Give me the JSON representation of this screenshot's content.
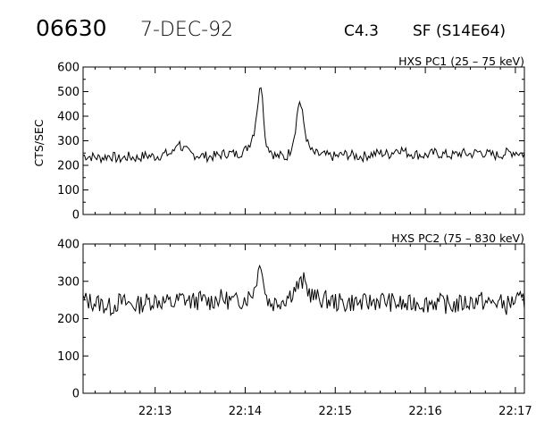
{
  "header": {
    "event_id": "06630",
    "date": "7-DEC-92",
    "flare_class": "C4.3",
    "flare_location": "SF (S14E64)"
  },
  "colors": {
    "trace": "#000000",
    "background": "#ffffff"
  },
  "chart_data": [
    {
      "type": "line",
      "title": "HXS PC1 (25 – 75 keV)",
      "ylabel": "CTS/SEC",
      "xlabel": "",
      "ylim": [
        0,
        600
      ],
      "yticks": [
        "0",
        "100",
        "200",
        "300",
        "400",
        "500",
        "600"
      ],
      "xlim_minutes": [
        12.2,
        17.1
      ],
      "x_tick_labels": [],
      "series": [
        {
          "x": [
            12.2,
            12.3,
            12.4,
            12.5,
            12.6,
            12.7,
            12.8,
            12.9,
            13.0,
            13.1,
            13.2,
            13.25,
            13.3,
            13.4,
            13.5,
            13.6,
            13.7,
            13.8,
            13.9,
            14.0,
            14.05,
            14.1,
            14.15,
            14.18,
            14.2,
            14.22,
            14.25,
            14.3,
            14.35,
            14.4,
            14.45,
            14.5,
            14.55,
            14.6,
            14.63,
            14.66,
            14.7,
            14.75,
            14.8,
            14.9,
            15.0,
            15.1,
            15.2,
            15.3,
            15.4,
            15.5,
            15.6,
            15.7,
            15.8,
            15.9,
            16.0,
            16.1,
            16.2,
            16.3,
            16.4,
            16.5,
            16.6,
            16.7,
            16.8,
            16.9,
            17.0,
            17.1
          ],
          "y": [
            240,
            235,
            230,
            240,
            225,
            235,
            230,
            240,
            235,
            245,
            250,
            300,
            270,
            245,
            240,
            235,
            240,
            250,
            245,
            260,
            290,
            340,
            480,
            540,
            450,
            310,
            280,
            250,
            235,
            240,
            230,
            260,
            330,
            470,
            420,
            350,
            280,
            250,
            245,
            240,
            235,
            245,
            240,
            235,
            245,
            250,
            245,
            270,
            250,
            245,
            240,
            250,
            245,
            240,
            250,
            245,
            255,
            245,
            240,
            250,
            255,
            245
          ]
        }
      ]
    },
    {
      "type": "line",
      "title": "HXS PC2 (75 – 830 keV)",
      "ylabel": "",
      "xlabel": "",
      "ylim": [
        0,
        400
      ],
      "yticks": [
        "0",
        "100",
        "200",
        "300",
        "400"
      ],
      "xlim_minutes": [
        12.2,
        17.1
      ],
      "x_tick_labels": [
        "22:13",
        "22:14",
        "22:15",
        "22:16",
        "22:17"
      ],
      "x_tick_minutes": [
        13,
        14,
        15,
        16,
        17
      ],
      "series": [
        {
          "x": [
            12.2,
            12.3,
            12.4,
            12.5,
            12.6,
            12.7,
            12.8,
            12.9,
            13.0,
            13.1,
            13.2,
            13.3,
            13.4,
            13.5,
            13.6,
            13.7,
            13.8,
            13.9,
            14.0,
            14.05,
            14.1,
            14.15,
            14.18,
            14.2,
            14.22,
            14.25,
            14.3,
            14.35,
            14.4,
            14.45,
            14.5,
            14.55,
            14.6,
            14.65,
            14.7,
            14.75,
            14.8,
            14.9,
            15.0,
            15.1,
            15.2,
            15.3,
            15.4,
            15.5,
            15.6,
            15.7,
            15.8,
            15.9,
            16.0,
            16.1,
            16.2,
            16.3,
            16.4,
            16.5,
            16.6,
            16.7,
            16.8,
            16.9,
            17.0,
            17.1
          ],
          "y": [
            250,
            245,
            240,
            230,
            245,
            240,
            235,
            245,
            250,
            245,
            240,
            255,
            245,
            250,
            245,
            255,
            250,
            245,
            255,
            260,
            280,
            330,
            360,
            310,
            270,
            250,
            240,
            245,
            250,
            255,
            265,
            280,
            290,
            300,
            275,
            260,
            255,
            250,
            245,
            240,
            245,
            240,
            245,
            250,
            245,
            240,
            235,
            245,
            240,
            245,
            240,
            235,
            240,
            245,
            250,
            240,
            245,
            235,
            250,
            245
          ]
        }
      ]
    }
  ]
}
